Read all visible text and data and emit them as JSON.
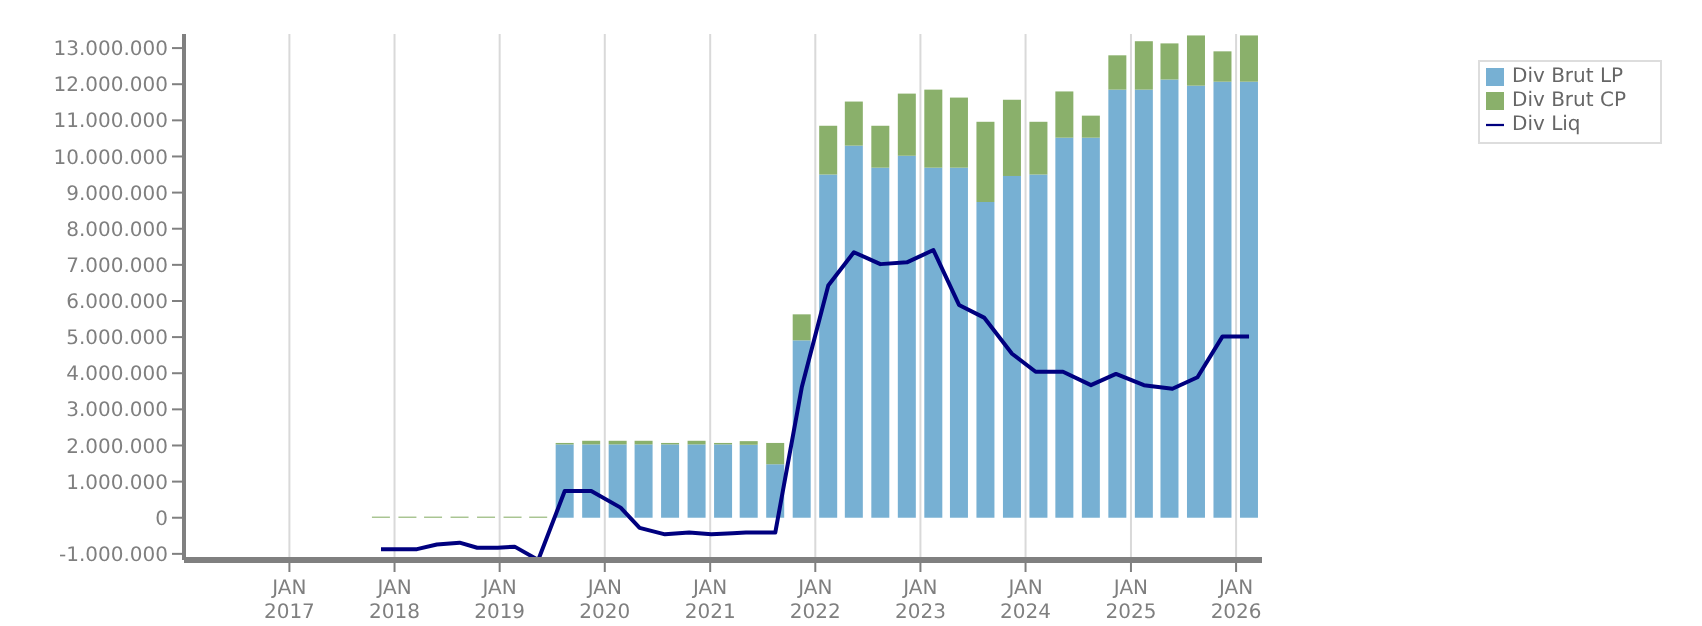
{
  "chart_data": {
    "type": "bar",
    "stacked": true,
    "x": [
      "2017-11-15",
      "2018-02-15",
      "2018-05-15",
      "2018-08-15",
      "2018-11-15",
      "2019-02-15",
      "2019-05-15",
      "2019-08-15",
      "2019-11-15",
      "2020-02-15",
      "2020-05-15",
      "2020-08-15",
      "2020-11-15",
      "2021-02-15",
      "2021-05-15",
      "2021-08-15",
      "2021-11-15",
      "2022-02-15",
      "2022-05-15",
      "2022-08-15",
      "2022-11-15",
      "2023-02-15",
      "2023-05-15",
      "2023-08-15",
      "2023-11-15",
      "2024-02-15",
      "2024-05-15",
      "2024-08-15",
      "2024-11-15",
      "2025-02-15",
      "2025-05-15",
      "2025-08-15",
      "2025-11-15",
      "2026-02-15"
    ],
    "series": [
      {
        "name": "Div Brut LP",
        "color": "#77b0d3",
        "values": [
          0,
          0,
          0,
          0,
          0,
          0,
          0,
          2030000,
          2030000,
          2030000,
          2030000,
          2030000,
          2030000,
          2030000,
          2020000,
          1480000,
          4910000,
          9500000,
          10300000,
          9690000,
          10020000,
          9690000,
          9690000,
          8740000,
          9460000,
          9500000,
          10520000,
          10520000,
          11850000,
          11850000,
          12130000,
          11960000,
          12070000,
          12070000
        ]
      },
      {
        "name": "Div Brut CP",
        "color": "#8ab06b",
        "values": [
          30000,
          30000,
          30000,
          30000,
          30000,
          30000,
          30000,
          40000,
          100000,
          100000,
          100000,
          40000,
          100000,
          40000,
          100000,
          590000,
          720000,
          1350000,
          1220000,
          1160000,
          1720000,
          2160000,
          1940000,
          2220000,
          2110000,
          1460000,
          1280000,
          610000,
          950000,
          1340000,
          1000000,
          1390000,
          840000,
          1280000
        ]
      },
      {
        "name": "Div Liq",
        "type": "line",
        "color": "#00007f",
        "x": [
          "2017-11-15",
          "2018-03-20",
          "2018-05-28",
          "2018-08-15",
          "2018-10-15",
          "2018-12-25",
          "2019-02-22",
          "2019-05-15",
          "2019-08-15",
          "2019-11-15",
          "2020-02-25",
          "2020-05-01",
          "2020-07-28",
          "2020-10-20",
          "2021-01-05",
          "2021-03-20",
          "2021-05-05",
          "2021-08-15",
          "2021-11-15",
          "2022-02-15",
          "2022-05-15",
          "2022-08-15",
          "2022-11-15",
          "2023-02-15",
          "2023-05-15",
          "2023-08-10",
          "2023-11-15",
          "2024-02-05",
          "2024-05-10",
          "2024-08-15",
          "2024-11-10",
          "2025-02-15",
          "2025-05-25",
          "2025-08-20",
          "2025-11-15",
          "2026-02-15"
        ],
        "values": [
          -870000,
          -870000,
          -740000,
          -690000,
          -830000,
          -830000,
          -800000,
          -1170000,
          740000,
          740000,
          280000,
          -280000,
          -460000,
          -410000,
          -460000,
          -430000,
          -410000,
          -410000,
          3610000,
          6430000,
          7350000,
          7020000,
          7070000,
          7410000,
          5890000,
          5540000,
          4540000,
          4040000,
          4040000,
          3670000,
          3980000,
          3670000,
          3570000,
          3890000,
          5020000,
          5020000
        ]
      }
    ],
    "xlim": [
      "2016-01-01",
      "2026-04-01"
    ],
    "xticks": [
      {
        "value": "2017-01-01",
        "label": "JAN\n2017"
      },
      {
        "value": "2018-01-01",
        "label": "JAN\n2018"
      },
      {
        "value": "2019-01-01",
        "label": "JAN\n2019"
      },
      {
        "value": "2020-01-01",
        "label": "JAN\n2020"
      },
      {
        "value": "2021-01-01",
        "label": "JAN\n2021"
      },
      {
        "value": "2022-01-01",
        "label": "JAN\n2022"
      },
      {
        "value": "2023-01-01",
        "label": "JAN\n2023"
      },
      {
        "value": "2024-01-01",
        "label": "JAN\n2024"
      },
      {
        "value": "2025-01-01",
        "label": "JAN\n2025"
      },
      {
        "value": "2026-01-01",
        "label": "JAN\n2026"
      }
    ],
    "ylim": [
      -1170000,
      13390000
    ],
    "yticks": [
      {
        "value": -1000000,
        "label": "-1.000.000"
      },
      0,
      {
        "value": 1000000,
        "label": "1.000.000"
      },
      {
        "value": 2000000,
        "label": "2.000.000"
      },
      {
        "value": 3000000,
        "label": "3.000.000"
      },
      {
        "value": 4000000,
        "label": "4.000.000"
      },
      {
        "value": 5000000,
        "label": "5.000.000"
      },
      {
        "value": 6000000,
        "label": "6.000.000"
      },
      {
        "value": 7000000,
        "label": "7.000.000"
      },
      {
        "value": 8000000,
        "label": "8.000.000"
      },
      {
        "value": 9000000,
        "label": "9.000.000"
      },
      {
        "value": 10000000,
        "label": "10.000.000"
      },
      {
        "value": 11000000,
        "label": "11.000.000"
      },
      {
        "value": 12000000,
        "label": "12.000.000"
      },
      {
        "value": 13000000,
        "label": "13.000.000"
      }
    ],
    "grid": true,
    "legend": "top right",
    "marker": "none",
    "line_style": "solid"
  }
}
